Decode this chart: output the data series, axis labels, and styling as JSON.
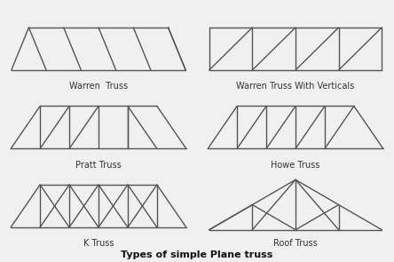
{
  "title": "Types of simple Plane truss",
  "bg_color": "#f0f0f0",
  "line_color": "#555555",
  "lw": 1.0,
  "label_fontsize": 7,
  "title_fontsize": 8,
  "labels": {
    "warren": "Warren  Truss",
    "warren_v": "Warren Truss With Verticals",
    "pratt": "Pratt Truss",
    "howe": "Howe Truss",
    "k": "K Truss",
    "roof": "Roof Truss"
  }
}
